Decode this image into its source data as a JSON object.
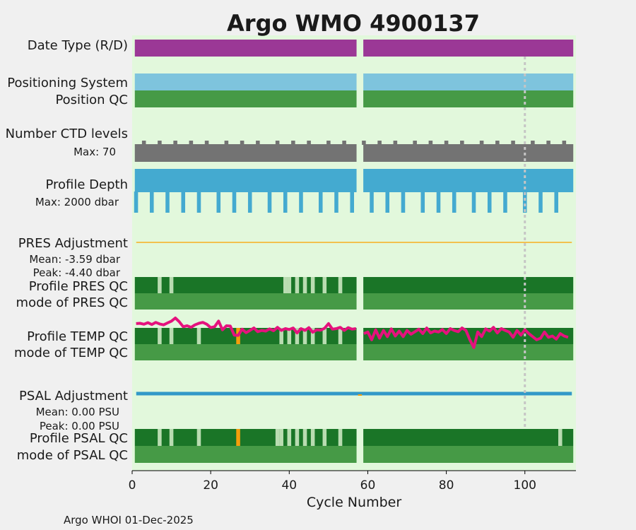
{
  "chart_data": {
    "type": "bar",
    "title": "Argo WMO 4900137",
    "xlabel": "Cycle Number",
    "xlim": [
      0,
      113
    ],
    "xticks": [
      0,
      20,
      40,
      60,
      80,
      100
    ],
    "missing_cycle": 58,
    "marker_cycle": 100,
    "rows": {
      "date_type": "Date Type (R/D)",
      "positioning_system": "Positioning System",
      "position_qc": "Position QC",
      "ctd_levels": "Number CTD levels",
      "profile_depth": "Profile Depth",
      "pres_adjustment": "PRES Adjustment",
      "profile_pres_qc": "Profile PRES QC",
      "mode_pres_qc": "mode of PRES QC",
      "profile_temp_qc": "Profile TEMP QC",
      "mode_temp_qc": "mode of TEMP QC",
      "psal_adjustment": "PSAL Adjustment",
      "profile_psal_qc": "Profile PSAL QC",
      "mode_psal_qc": "mode of PSAL QC"
    },
    "annotations": {
      "ctd_max": "Max: 70",
      "depth_max": "Max: 2000 dbar",
      "pres_mean": "Mean: -3.59 dbar",
      "pres_peak": "Peak: -4.40 dbar",
      "psal_mean": "Mean: 0.00 PSU",
      "psal_peak": "Peak: 0.00 PSU"
    },
    "shallow_depth_cycles": [
      1,
      5,
      9,
      13,
      17,
      22,
      26,
      30,
      35,
      39,
      43,
      48,
      52,
      56,
      61,
      65,
      69,
      74,
      78,
      82,
      87,
      91,
      95,
      100,
      104,
      108
    ],
    "ctd_bump_cycles": [
      3,
      7,
      11,
      15,
      19,
      24,
      28,
      32,
      37,
      41,
      45,
      50,
      54,
      59,
      63,
      67,
      72,
      76,
      80,
      84,
      89,
      93,
      97,
      102,
      106,
      110
    ],
    "pres_qc_light_cycles": [
      7,
      10,
      39,
      40,
      42,
      44,
      46,
      49,
      53
    ],
    "temp_qc_light_cycles": [
      7,
      10,
      17,
      38,
      40,
      42,
      44,
      46,
      49,
      53
    ],
    "temp_qc_orange_cycles": [
      27
    ],
    "psal_qc_light_cycles": [
      7,
      10,
      17,
      37,
      38,
      40,
      42,
      44,
      46,
      49,
      53,
      109
    ],
    "psal_qc_orange_cycles": [
      27
    ],
    "temp_adjustment_trace": [
      [
        1,
        0.82
      ],
      [
        2,
        0.83
      ],
      [
        3,
        0.8
      ],
      [
        4,
        0.85
      ],
      [
        5,
        0.79
      ],
      [
        6,
        0.86
      ],
      [
        7,
        0.81
      ],
      [
        8,
        0.78
      ],
      [
        9,
        0.84
      ],
      [
        10,
        0.9
      ],
      [
        11,
        1.0
      ],
      [
        12,
        0.88
      ],
      [
        13,
        0.72
      ],
      [
        14,
        0.75
      ],
      [
        15,
        0.7
      ],
      [
        16,
        0.78
      ],
      [
        17,
        0.83
      ],
      [
        18,
        0.86
      ],
      [
        19,
        0.8
      ],
      [
        20,
        0.69
      ],
      [
        21,
        0.72
      ],
      [
        22,
        0.9
      ],
      [
        23,
        0.62
      ],
      [
        24,
        0.75
      ],
      [
        25,
        0.74
      ],
      [
        26,
        0.45
      ],
      [
        27,
        0.44
      ],
      [
        28,
        0.64
      ],
      [
        29,
        0.53
      ],
      [
        30,
        0.6
      ],
      [
        31,
        0.68
      ],
      [
        32,
        0.56
      ],
      [
        33,
        0.6
      ],
      [
        34,
        0.58
      ],
      [
        35,
        0.65
      ],
      [
        36,
        0.59
      ],
      [
        37,
        0.7
      ],
      [
        38,
        0.6
      ],
      [
        39,
        0.66
      ],
      [
        40,
        0.63
      ],
      [
        41,
        0.68
      ],
      [
        42,
        0.52
      ],
      [
        43,
        0.66
      ],
      [
        44,
        0.6
      ],
      [
        45,
        0.69
      ],
      [
        46,
        0.54
      ],
      [
        47,
        0.62
      ],
      [
        48,
        0.61
      ],
      [
        49,
        0.67
      ],
      [
        50,
        0.82
      ],
      [
        51,
        0.64
      ],
      [
        52,
        0.66
      ],
      [
        53,
        0.7
      ],
      [
        54,
        0.6
      ],
      [
        55,
        0.69
      ],
      [
        56,
        0.64
      ],
      [
        57,
        0.66
      ],
      [
        59,
        0.5
      ],
      [
        60,
        0.55
      ],
      [
        61,
        0.3
      ],
      [
        62,
        0.62
      ],
      [
        63,
        0.35
      ],
      [
        64,
        0.6
      ],
      [
        65,
        0.4
      ],
      [
        66,
        0.65
      ],
      [
        67,
        0.42
      ],
      [
        68,
        0.58
      ],
      [
        69,
        0.4
      ],
      [
        70,
        0.6
      ],
      [
        71,
        0.48
      ],
      [
        72,
        0.56
      ],
      [
        73,
        0.64
      ],
      [
        74,
        0.5
      ],
      [
        75,
        0.68
      ],
      [
        76,
        0.52
      ],
      [
        77,
        0.58
      ],
      [
        78,
        0.55
      ],
      [
        79,
        0.63
      ],
      [
        80,
        0.5
      ],
      [
        81,
        0.66
      ],
      [
        82,
        0.6
      ],
      [
        83,
        0.56
      ],
      [
        84,
        0.68
      ],
      [
        85,
        0.6
      ],
      [
        86,
        0.3
      ],
      [
        87,
        0.05
      ],
      [
        88,
        0.55
      ],
      [
        89,
        0.4
      ],
      [
        90,
        0.65
      ],
      [
        91,
        0.58
      ],
      [
        92,
        0.7
      ],
      [
        93,
        0.52
      ],
      [
        94,
        0.66
      ],
      [
        95,
        0.6
      ],
      [
        96,
        0.55
      ],
      [
        97,
        0.38
      ],
      [
        98,
        0.6
      ],
      [
        99,
        0.45
      ],
      [
        100,
        0.62
      ],
      [
        101,
        0.5
      ],
      [
        102,
        0.4
      ],
      [
        103,
        0.3
      ],
      [
        104,
        0.35
      ],
      [
        105,
        0.55
      ],
      [
        106,
        0.38
      ],
      [
        107,
        0.42
      ],
      [
        108,
        0.32
      ],
      [
        109,
        0.5
      ],
      [
        110,
        0.42
      ],
      [
        111,
        0.38
      ]
    ],
    "colors": {
      "panel": "#e2f8dc",
      "date_type": "#9b3896",
      "positioning": "#7ec4dd",
      "qc_mode": "#469a46",
      "qc_profile": "#1a7527",
      "qc_light": "#b9dcb1",
      "qc_orange": "#f59e0b",
      "ctd": "#737373",
      "depth": "#44aad0",
      "pres_line": "#f2c14e",
      "psal_line": "#3399c8",
      "temp_trace": "#e5127d",
      "title": "#1789c0",
      "marker": "#c5c5c5"
    }
  },
  "footer": {
    "credit": "Argo WHOI 01-Dec-2025"
  }
}
